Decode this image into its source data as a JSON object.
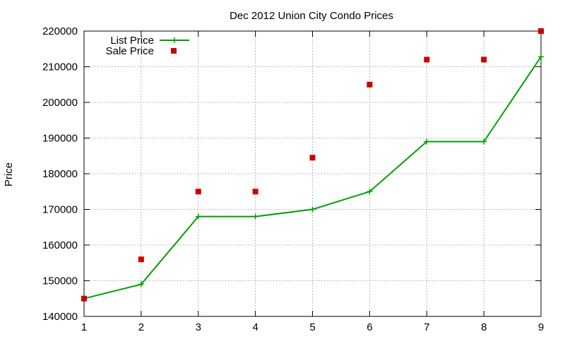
{
  "chart_data": {
    "type": "line",
    "title": "Dec 2012 Union City Condo Prices",
    "xlabel": "",
    "ylabel": "Price",
    "x": [
      1,
      2,
      3,
      4,
      5,
      6,
      7,
      8,
      9
    ],
    "xlim": [
      1,
      9
    ],
    "ylim": [
      140000,
      220000
    ],
    "x_ticks": [
      "1",
      "2",
      "3",
      "4",
      "5",
      "6",
      "7",
      "8",
      "9"
    ],
    "y_ticks": [
      "140000",
      "150000",
      "160000",
      "170000",
      "180000",
      "190000",
      "200000",
      "210000",
      "220000"
    ],
    "grid": true,
    "legend_position": "top-left",
    "series": [
      {
        "name": "List Price",
        "style": "line with plus markers",
        "color": "#00a000",
        "values": [
          145000,
          149000,
          168000,
          168000,
          170000,
          175000,
          189000,
          189000,
          212800
        ]
      },
      {
        "name": "Sale Price",
        "style": "square points",
        "color": "#cc0000",
        "values": [
          145000,
          156000,
          175000,
          175000,
          184500,
          205000,
          212000,
          212000,
          220000
        ]
      }
    ]
  }
}
